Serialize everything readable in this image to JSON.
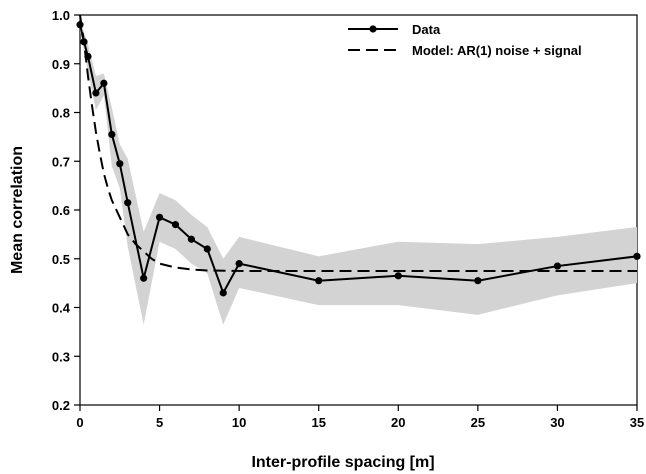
{
  "chart_data": {
    "type": "line",
    "xlabel": "Inter-profile spacing [m]",
    "ylabel": "Mean correlation",
    "xlim": [
      0,
      35
    ],
    "ylim": [
      0.2,
      1.0
    ],
    "xticks": [
      0,
      5,
      10,
      15,
      20,
      25,
      30,
      35
    ],
    "yticks": [
      0.2,
      0.3,
      0.4,
      0.5,
      0.6,
      0.7,
      0.8,
      0.9,
      1.0
    ],
    "grid": false,
    "legend_position": "top-right",
    "series": [
      {
        "name": "Data",
        "style": "solid-markers",
        "color": "#000000",
        "x": [
          0.0,
          0.25,
          0.5,
          1.0,
          1.5,
          2.0,
          2.5,
          3.0,
          4.0,
          5.0,
          6.0,
          7.0,
          8.0,
          9.0,
          10.0,
          15.0,
          20.0,
          25.0,
          30.0,
          35.0
        ],
        "y": [
          0.98,
          0.945,
          0.915,
          0.84,
          0.86,
          0.755,
          0.695,
          0.615,
          0.46,
          0.585,
          0.57,
          0.54,
          0.52,
          0.43,
          0.49,
          0.455,
          0.465,
          0.455,
          0.485,
          0.505
        ],
        "band_upper": [
          0.995,
          0.965,
          0.94,
          0.875,
          0.88,
          0.81,
          0.735,
          0.705,
          0.555,
          0.635,
          0.62,
          0.59,
          0.565,
          0.5,
          0.545,
          0.505,
          0.535,
          0.53,
          0.545,
          0.565
        ],
        "band_lower": [
          0.965,
          0.925,
          0.885,
          0.805,
          0.835,
          0.69,
          0.645,
          0.525,
          0.365,
          0.535,
          0.52,
          0.49,
          0.47,
          0.365,
          0.44,
          0.405,
          0.405,
          0.385,
          0.425,
          0.45
        ],
        "band_color": "#d3d3d3"
      },
      {
        "name": "Model: AR(1) noise + signal",
        "style": "dashed",
        "color": "#000000",
        "x": [
          0,
          0.25,
          0.5,
          0.75,
          1,
          1.25,
          1.5,
          1.75,
          2,
          2.5,
          3,
          3.5,
          4,
          4.5,
          5,
          6,
          7,
          8,
          10,
          15,
          20,
          25,
          30,
          35
        ],
        "y": [
          1.0,
          0.945,
          0.875,
          0.815,
          0.76,
          0.715,
          0.675,
          0.645,
          0.62,
          0.585,
          0.55,
          0.53,
          0.515,
          0.5,
          0.49,
          0.482,
          0.478,
          0.476,
          0.475,
          0.475,
          0.475,
          0.475,
          0.475,
          0.475
        ]
      }
    ]
  }
}
